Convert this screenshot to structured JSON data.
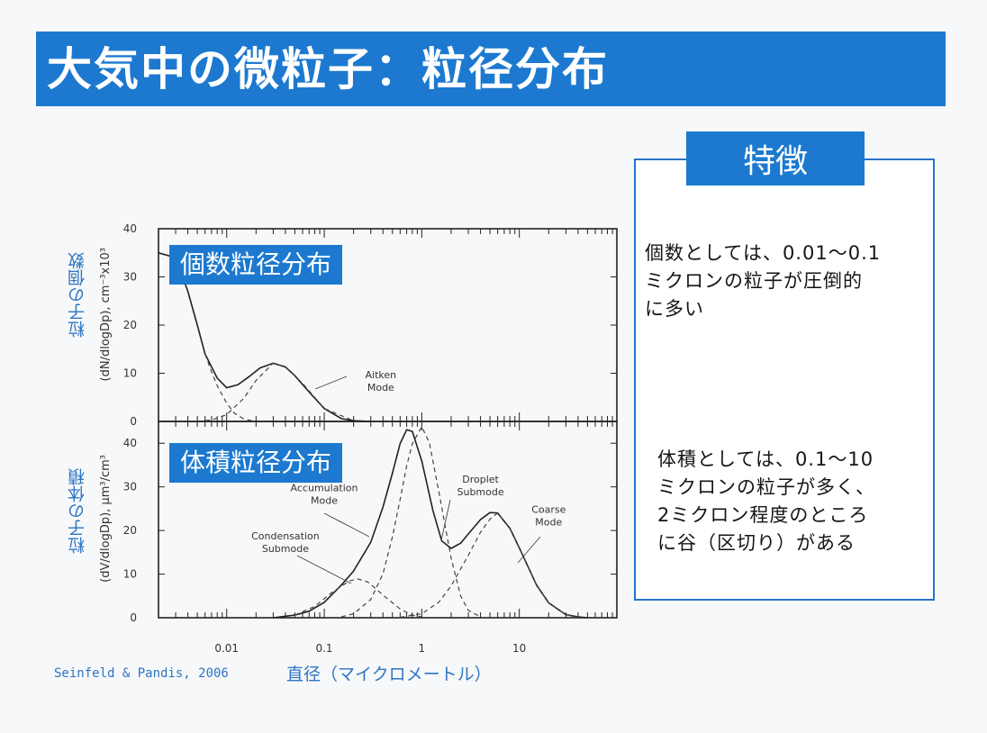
{
  "title": "大気中の微粒子：粒径分布",
  "features": {
    "header": "特徴",
    "number_text": "個数としては、0.01〜0.1\nミクロンの粒子が圧倒的\nに多い",
    "volume_text": "体積としては、0.1〜10\nミクロンの粒子が多く、\n2ミクロン程度のところ\nに谷（区切り）がある"
  },
  "citation": "Seinfeld & Pandis, 2006",
  "xlabel": "直径（マイクロメートル）",
  "colors": {
    "accent": "#1c79cf",
    "label_blue": "#2e75c3",
    "border": "#2a72c8"
  },
  "chart_data": [
    {
      "type": "line",
      "panel_label": "個数粒径分布",
      "ylabel_jp": "粒子の個数",
      "ylabel_en": "(dN/dlogDp), cm⁻³x10³",
      "xscale": "log",
      "xlim": [
        0.002,
        100
      ],
      "ylim": [
        0,
        40
      ],
      "yticks": [
        0,
        10,
        20,
        30,
        40
      ],
      "series": [
        {
          "style": "solid",
          "points": [
            [
              0.002,
              35
            ],
            [
              0.003,
              34
            ],
            [
              0.004,
              27
            ],
            [
              0.005,
              20
            ],
            [
              0.006,
              14
            ],
            [
              0.008,
              9
            ],
            [
              0.01,
              7
            ],
            [
              0.013,
              7.6
            ],
            [
              0.017,
              9.3
            ],
            [
              0.022,
              11.1
            ],
            [
              0.03,
              12.1
            ],
            [
              0.04,
              11.3
            ],
            [
              0.05,
              9.5
            ],
            [
              0.07,
              6.1
            ],
            [
              0.1,
              2.7
            ],
            [
              0.15,
              0.6
            ],
            [
              0.2,
              0.15
            ],
            [
              0.3,
              0
            ]
          ]
        },
        {
          "style": "dashed",
          "points": [
            [
              0.006,
              14
            ],
            [
              0.007,
              10.3
            ],
            [
              0.008,
              7.4
            ],
            [
              0.01,
              3.8
            ],
            [
              0.012,
              1.7
            ],
            [
              0.015,
              0.5
            ],
            [
              0.02,
              0
            ]
          ]
        },
        {
          "style": "dashed",
          "points": [
            [
              0.005,
              0
            ],
            [
              0.007,
              0.3
            ],
            [
              0.01,
              1.4
            ],
            [
              0.015,
              4.8
            ],
            [
              0.02,
              8.5
            ],
            [
              0.03,
              12.1
            ],
            [
              0.04,
              11.3
            ],
            [
              0.06,
              7.9
            ],
            [
              0.1,
              2.7
            ],
            [
              0.2,
              0.15
            ]
          ]
        }
      ],
      "annotations": [
        {
          "text": "Aitken\nMode",
          "x": 0.38,
          "y": 9
        }
      ]
    },
    {
      "type": "line",
      "panel_label": "体積粒径分布",
      "ylabel_jp": "粒子の体積",
      "ylabel_en": "(dV/dlogDp), µm³/cm³",
      "xscale": "log",
      "xlim": [
        0.002,
        100
      ],
      "ylim": [
        0,
        45
      ],
      "yticks": [
        0,
        10,
        20,
        30,
        40
      ],
      "xticks": [
        0.01,
        0.1,
        1,
        10
      ],
      "xtick_labels": [
        "0.01",
        "0.1",
        "1",
        "10"
      ],
      "series": [
        {
          "style": "solid",
          "points": [
            [
              0.03,
              0
            ],
            [
              0.05,
              0.6
            ],
            [
              0.07,
              1.5
            ],
            [
              0.1,
              3.5
            ],
            [
              0.15,
              7.5
            ],
            [
              0.2,
              10.7
            ],
            [
              0.3,
              17.3
            ],
            [
              0.4,
              25.4
            ],
            [
              0.5,
              33.1
            ],
            [
              0.6,
              39.9
            ],
            [
              0.7,
              43.1
            ],
            [
              0.8,
              42.7
            ],
            [
              1,
              35.9
            ],
            [
              1.3,
              24.6
            ],
            [
              1.6,
              17.6
            ],
            [
              2,
              15.9
            ],
            [
              2.5,
              17.1
            ],
            [
              3,
              19.2
            ],
            [
              4,
              22.5
            ],
            [
              5,
              24.1
            ],
            [
              6,
              24.0
            ],
            [
              8,
              20.5
            ],
            [
              10,
              16.0
            ],
            [
              15,
              7.5
            ],
            [
              20,
              3.4
            ],
            [
              30,
              0.7
            ],
            [
              40,
              0.2
            ],
            [
              50,
              0
            ]
          ]
        },
        {
          "style": "dashed",
          "points": [
            [
              0.05,
              0.6
            ],
            [
              0.08,
              2.6
            ],
            [
              0.12,
              5.8
            ],
            [
              0.18,
              8.4
            ],
            [
              0.22,
              8.9
            ],
            [
              0.28,
              8.2
            ],
            [
              0.4,
              5.2
            ],
            [
              0.6,
              2.0
            ],
            [
              0.8,
              0.6
            ],
            [
              1,
              0.2
            ]
          ]
        },
        {
          "style": "dashed",
          "points": [
            [
              0.15,
              0.2
            ],
            [
              0.2,
              0.9
            ],
            [
              0.3,
              4.2
            ],
            [
              0.4,
              10.1
            ],
            [
              0.5,
              18.5
            ],
            [
              0.6,
              27.1
            ],
            [
              0.7,
              34.8
            ],
            [
              0.8,
              39.9
            ],
            [
              1,
              43.8
            ],
            [
              1.2,
              40.0
            ],
            [
              1.5,
              28.8
            ],
            [
              2,
              13.6
            ],
            [
              2.5,
              5.0
            ],
            [
              3,
              1.7
            ],
            [
              4,
              0.2
            ]
          ]
        },
        {
          "style": "dashed",
          "points": [
            [
              0.6,
              0.1
            ],
            [
              1,
              0.9
            ],
            [
              1.5,
              3.6
            ],
            [
              2,
              7.3
            ],
            [
              3,
              14.3
            ],
            [
              4,
              19.6
            ],
            [
              5,
              22.6
            ],
            [
              6,
              24.0
            ],
            [
              8,
              20.5
            ],
            [
              10,
              16.0
            ],
            [
              15,
              7.5
            ],
            [
              20,
              3.4
            ],
            [
              30,
              0.7
            ],
            [
              40,
              0.1
            ]
          ]
        }
      ],
      "annotations": [
        {
          "text": "Accumulation\nMode",
          "x": 0.1,
          "y": 29
        },
        {
          "text": "Condensation\nSubmode",
          "x": 0.04,
          "y": 18
        },
        {
          "text": "Droplet\nSubmode",
          "x": 4,
          "y": 31
        },
        {
          "text": "Coarse\nMode",
          "x": 20,
          "y": 24
        }
      ]
    }
  ]
}
